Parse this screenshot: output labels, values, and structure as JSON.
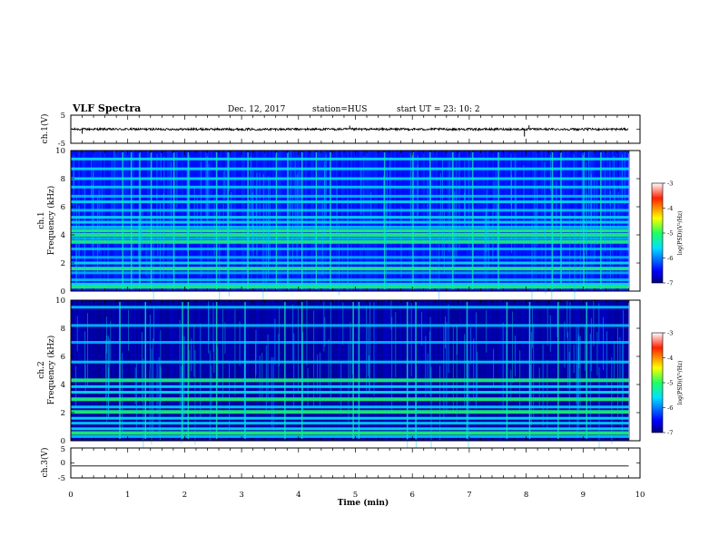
{
  "header": {
    "title": "VLF Spectra",
    "date": "Dec. 12, 2017",
    "station": "station=HUS",
    "start_ut": "start  UT  =   23: 10: 2"
  },
  "chart_data": [
    {
      "type": "line",
      "panel": "ch1-waveform",
      "ylabel": "ch.1(V)",
      "ylim": [
        -5,
        5
      ],
      "yticks": [
        "5",
        "-5"
      ],
      "xlim": [
        0,
        10
      ],
      "baseline": 0,
      "noise_amplitude": 0.4,
      "spikes": [
        {
          "x": 0.2,
          "y": -1.6
        },
        {
          "x": 4.9,
          "y": 1.3
        },
        {
          "x": 7.97,
          "y": -2.6
        },
        {
          "x": 8.05,
          "y": 1.4
        }
      ],
      "data_end": 9.8,
      "color": "#000000"
    },
    {
      "type": "heatmap",
      "panel": "ch1-spectrogram",
      "ylabel": "ch.1\nFrequency (kHz)",
      "ylim": [
        0,
        10
      ],
      "yticks": [
        "0",
        "2",
        "4",
        "6",
        "8",
        "10"
      ],
      "xlim": [
        0,
        10
      ],
      "data_end": 9.8,
      "colorbar": {
        "label": "log(PSD)(V²/Hz)",
        "range": [
          -7,
          -3
        ],
        "ticks": [
          "-3",
          "-4",
          "-5",
          "-6",
          "-7"
        ]
      },
      "bands_khz": [
        0.3,
        0.5,
        0.8,
        1.3,
        1.6,
        2.0,
        2.4,
        3.0,
        3.5,
        3.75,
        4.0,
        4.3,
        4.55,
        4.9,
        5.25,
        5.75,
        6.35,
        6.75,
        7.4,
        8.0,
        8.7,
        9.4
      ],
      "bright_bands_khz": [
        0.3,
        1.6,
        3.5,
        4.0,
        4.3
      ],
      "impulse_times_min": [
        0.9,
        1.05,
        1.2,
        1.4,
        1.8,
        2.05,
        2.55,
        2.75,
        3.1,
        3.6,
        3.8,
        4.05,
        4.3,
        4.55,
        5.5,
        6.0,
        6.3,
        6.7,
        7.05,
        7.5,
        8.45,
        8.6,
        9.0,
        9.3
      ]
    },
    {
      "type": "heatmap",
      "panel": "ch2-spectrogram",
      "ylabel": "ch.2\nFrequency (kHz)",
      "ylim": [
        0,
        10
      ],
      "yticks": [
        "0",
        "2",
        "4",
        "6",
        "8",
        "10"
      ],
      "xlim": [
        0,
        10
      ],
      "data_end": 9.8,
      "colorbar": {
        "label": "log(PSD)(V²/Hz)",
        "range": [
          -7,
          -3
        ],
        "ticks": [
          "-3",
          "-4",
          "-5",
          "-6",
          "-7"
        ]
      },
      "bands_khz": [
        0.3,
        0.55,
        0.85,
        1.25,
        1.6,
        2.05,
        2.4,
        2.95,
        3.45,
        3.85,
        4.3,
        5.6,
        7.0,
        8.2,
        9.5
      ],
      "bright_bands_khz": [
        0.55,
        2.05,
        2.95,
        4.3
      ],
      "impulse_times_min": [
        0.85,
        1.3,
        1.95,
        2.05,
        2.55,
        3.05,
        3.75,
        4.05,
        4.95,
        5.05,
        5.9,
        6.05,
        6.95,
        7.65,
        8.05,
        8.55,
        9.05
      ]
    },
    {
      "type": "line",
      "panel": "ch3-waveform",
      "ylabel": "ch.3(V)",
      "ylim": [
        -5,
        5
      ],
      "yticks": [
        "5",
        "0",
        "-5"
      ],
      "xlim": [
        0,
        10
      ],
      "baseline": -1,
      "data_end": 9.8,
      "color": "#000000"
    }
  ],
  "xaxis": {
    "label": "Time  (min)",
    "ticks": [
      "0",
      "1",
      "2",
      "3",
      "4",
      "5",
      "6",
      "7",
      "8",
      "9",
      "10"
    ]
  }
}
